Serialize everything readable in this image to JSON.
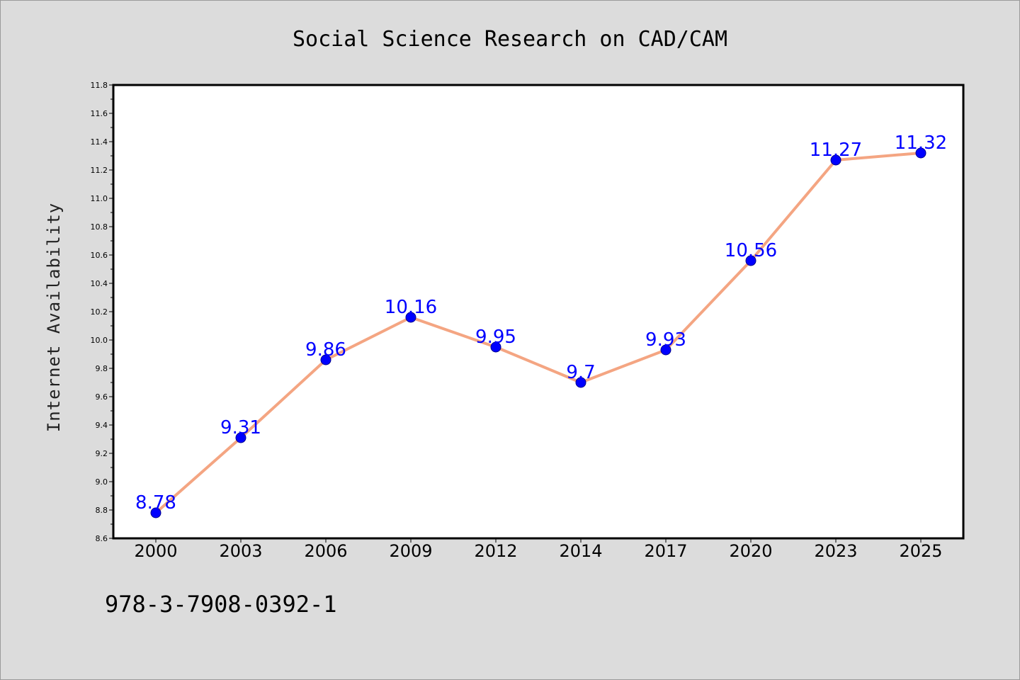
{
  "chart_data": {
    "type": "line",
    "title": "Social Science Research on CAD/CAM",
    "xlabel": "",
    "ylabel": "Internet Availability",
    "categories": [
      "2000",
      "2003",
      "2006",
      "2009",
      "2012",
      "2014",
      "2017",
      "2020",
      "2023",
      "2025"
    ],
    "series": [
      {
        "values": [
          8.78,
          9.31,
          9.86,
          10.16,
          9.95,
          9.7,
          9.93,
          10.56,
          11.27,
          11.32
        ],
        "labels": [
          "8.78",
          "9.31",
          "9.86",
          "10.16",
          "9.95",
          "9.7",
          "9.93",
          "10.56",
          "11.27",
          "11.32"
        ]
      }
    ],
    "ylim": [
      8.6,
      11.8
    ],
    "yticks": [
      "8.6",
      "8.8",
      "9.0",
      "9.2",
      "9.4",
      "9.6",
      "9.8",
      "10.0",
      "10.2",
      "10.4",
      "10.6",
      "10.8",
      "11.0",
      "11.2",
      "11.4",
      "11.6",
      "11.8"
    ],
    "grid": false,
    "legend": "none",
    "colors": {
      "line": "#f4a582",
      "marker": "#0000ff",
      "marker_edge": "#00008b",
      "data_label": "#0000ff",
      "plot_background": "#ffffff",
      "figure_background": "#dcdcdc"
    }
  },
  "footer": {
    "isbn": "978-3-7908-0392-1"
  }
}
